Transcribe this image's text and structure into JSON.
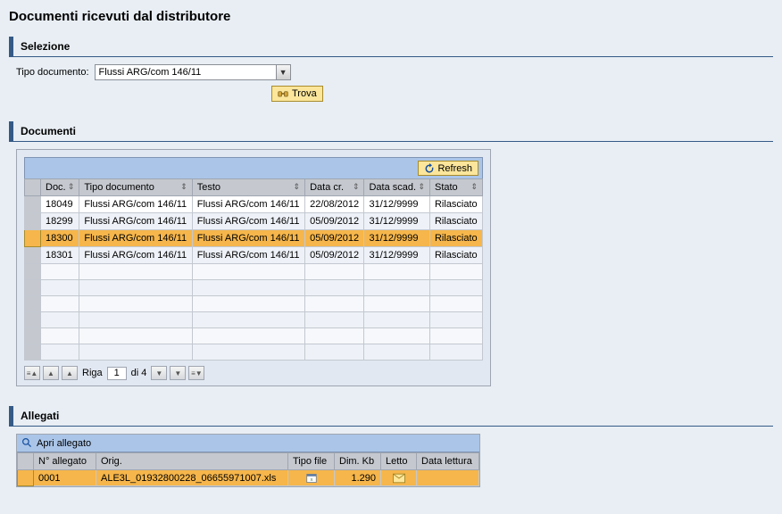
{
  "page_title": "Documenti ricevuti dal distributore",
  "selezione": {
    "title": "Selezione",
    "tipo_documento_label": "Tipo documento:",
    "tipo_documento_value": "Flussi ARG/com 146/11",
    "find_label": "Trova"
  },
  "documenti": {
    "title": "Documenti",
    "refresh_label": "Refresh",
    "columns": {
      "doc": "Doc.",
      "tipo": "Tipo documento",
      "testo": "Testo",
      "data_cr": "Data cr.",
      "data_scad": "Data scad.",
      "stato": "Stato"
    },
    "rows": [
      {
        "doc": "18049",
        "tipo": "Flussi ARG/com 146/11",
        "testo": "Flussi ARG/com 146/11",
        "data_cr": "22/08/2012",
        "data_scad": "31/12/9999",
        "stato": "Rilasciato",
        "selected": false
      },
      {
        "doc": "18299",
        "tipo": "Flussi ARG/com 146/11",
        "testo": "Flussi ARG/com 146/11",
        "data_cr": "05/09/2012",
        "data_scad": "31/12/9999",
        "stato": "Rilasciato",
        "selected": false
      },
      {
        "doc": "18300",
        "tipo": "Flussi ARG/com 146/11",
        "testo": "Flussi ARG/com 146/11",
        "data_cr": "05/09/2012",
        "data_scad": "31/12/9999",
        "stato": "Rilasciato",
        "selected": true
      },
      {
        "doc": "18301",
        "tipo": "Flussi ARG/com 146/11",
        "testo": "Flussi ARG/com 146/11",
        "data_cr": "05/09/2012",
        "data_scad": "31/12/9999",
        "stato": "Rilasciato",
        "selected": false
      }
    ],
    "empty_rows": 6,
    "pager": {
      "label_riga": "Riga",
      "current": "1",
      "label_di": "di 4"
    }
  },
  "allegati": {
    "title": "Allegati",
    "open_label": "Apri allegato",
    "columns": {
      "num": "N° allegato",
      "orig": "Orig.",
      "tipo_file": "Tipo file",
      "dim": "Dim. Kb",
      "letto": "Letto",
      "data_lettura": "Data lettura"
    },
    "rows": [
      {
        "num": "0001",
        "orig": "ALE3L_01932800228_06655971007.xls",
        "tipo_file": "xls",
        "dim": "1.290",
        "letto": "mail",
        "data_lettura": "",
        "selected": true
      }
    ]
  },
  "colors": {
    "accent": "#355a86",
    "header_bg": "#aac5e8",
    "col_bg": "#c5c9cf",
    "selected": "#f6b64b",
    "btn_bg": "#fbe69b"
  }
}
